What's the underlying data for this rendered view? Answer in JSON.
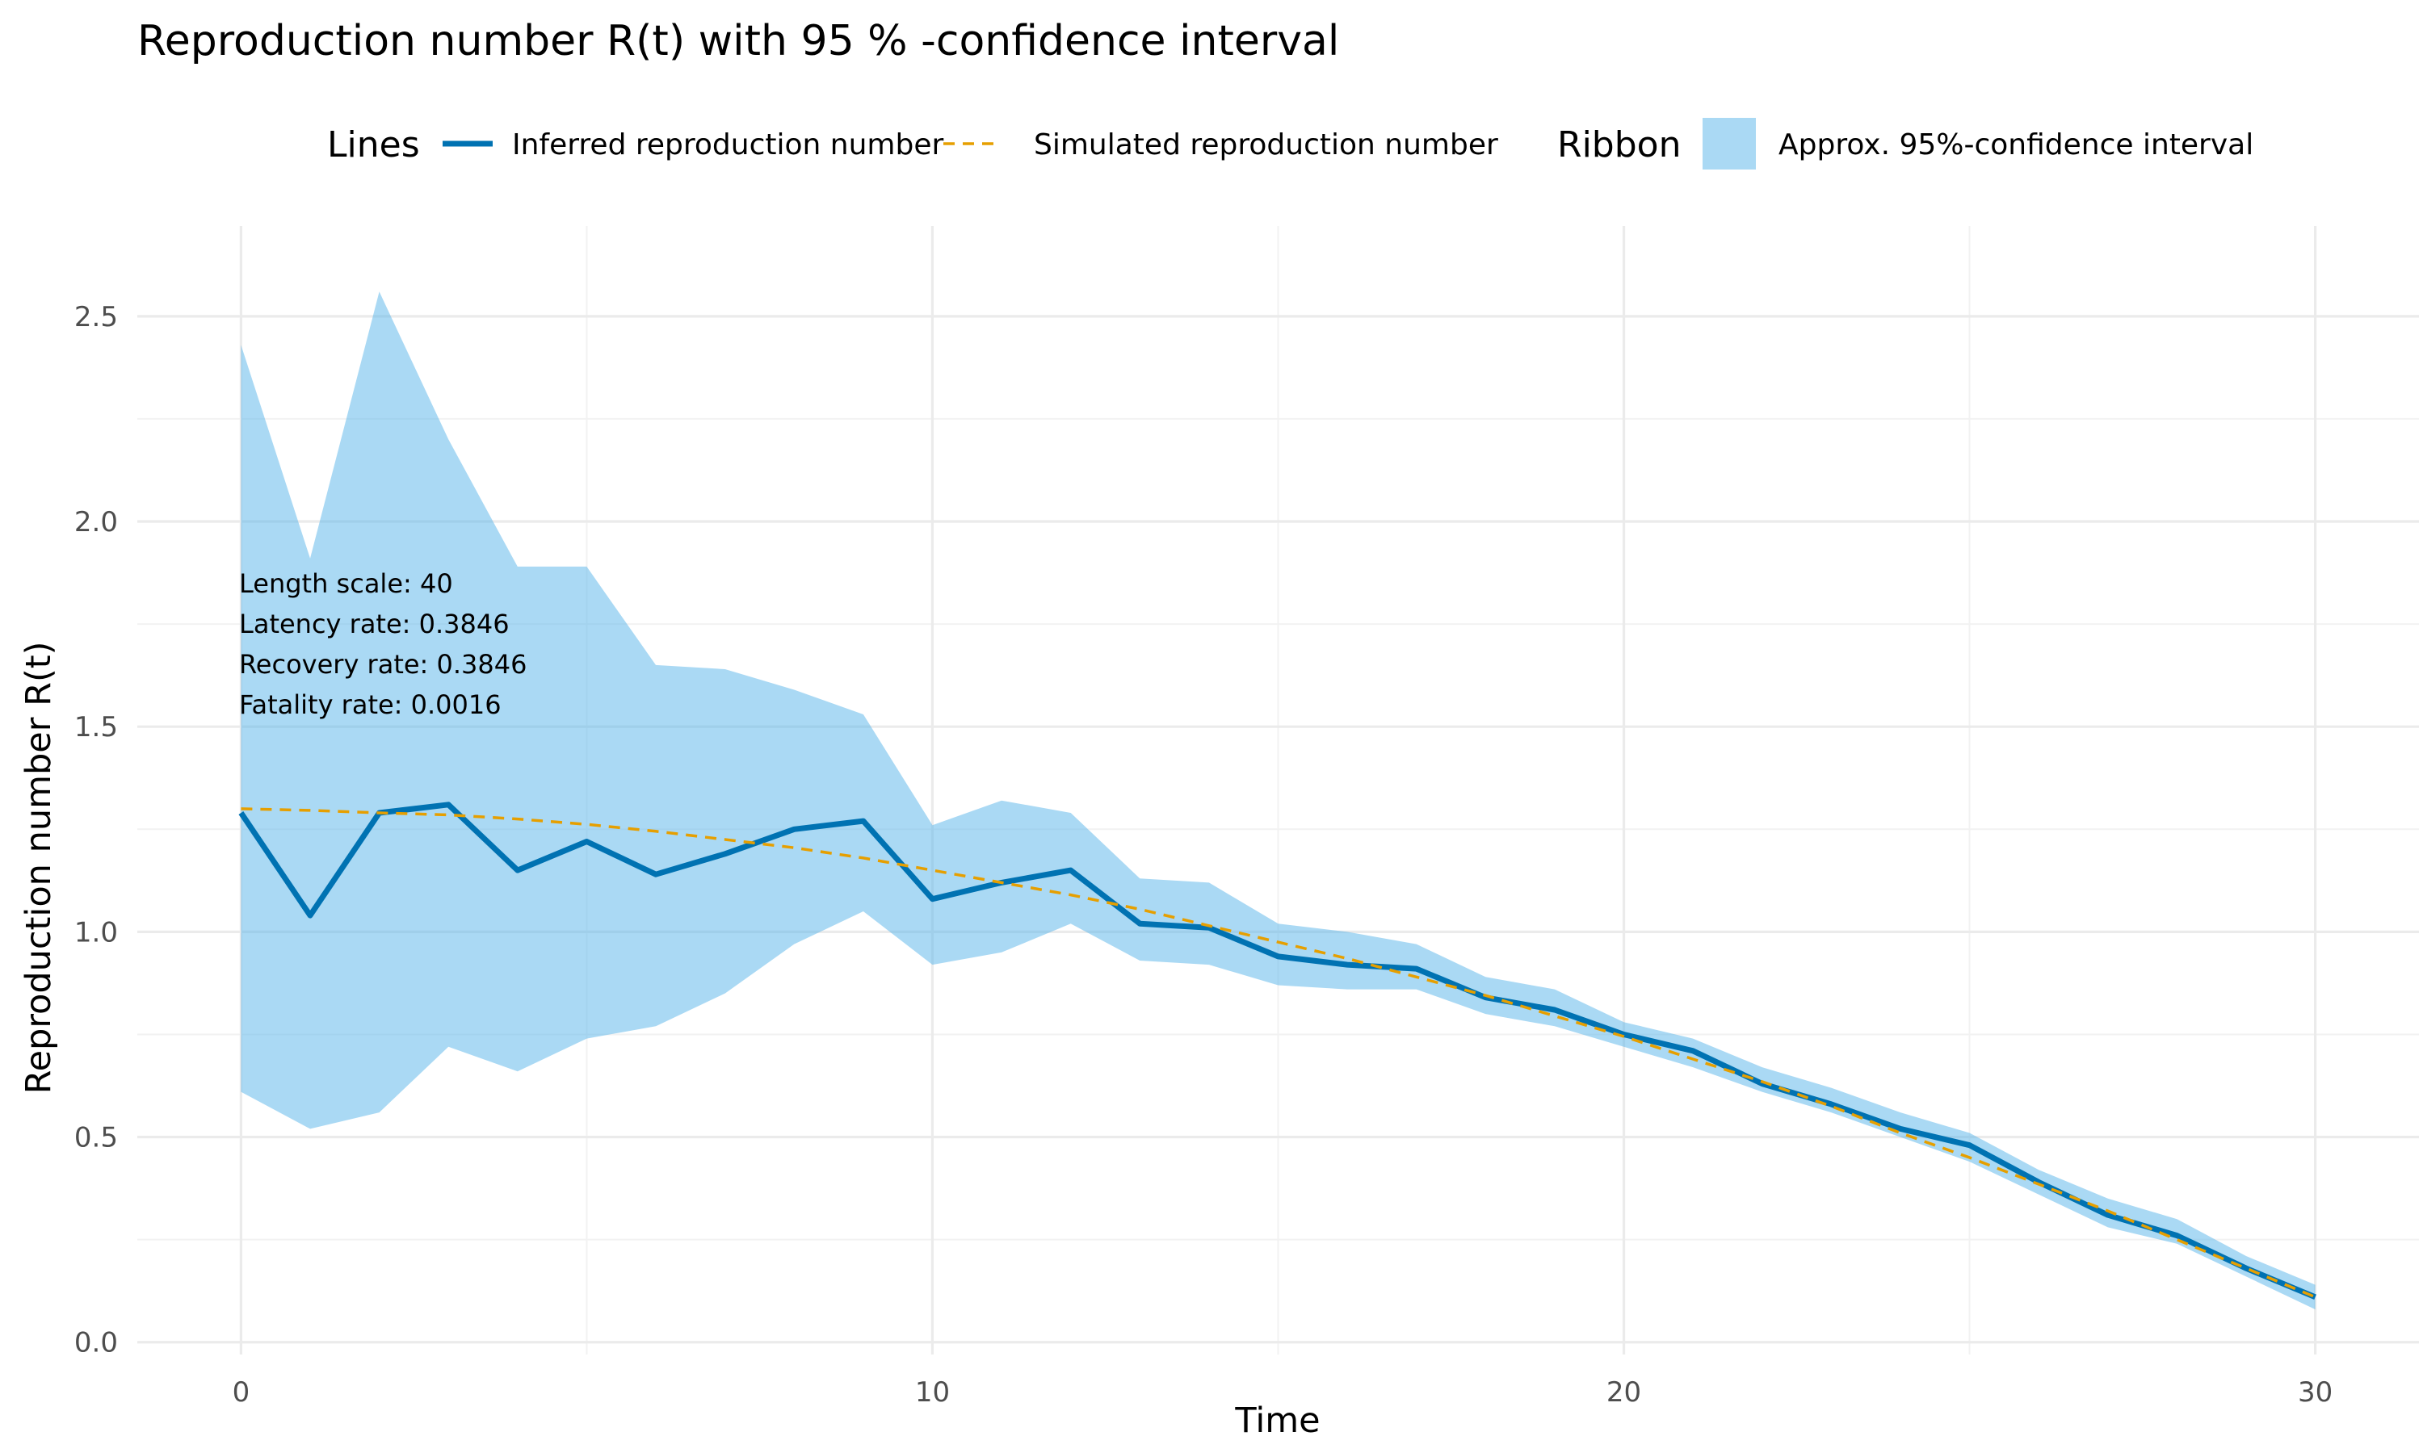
{
  "chart_data": {
    "type": "line",
    "title": "Reproduction number R(t) with 95 % -confidence interval",
    "xlabel": "Time",
    "ylabel": "Reproduction number R(t)",
    "xlim": [
      -1.5,
      31.5
    ],
    "ylim": [
      -0.03,
      2.72
    ],
    "x_ticks": [
      0,
      10,
      20,
      30
    ],
    "y_ticks": [
      0.0,
      0.5,
      1.0,
      1.5,
      2.0,
      2.5
    ],
    "x_tick_labels": [
      "0",
      "10",
      "20",
      "30"
    ],
    "y_tick_labels": [
      "0.0",
      "0.5",
      "1.0",
      "1.5",
      "2.0",
      "2.5"
    ],
    "grid": true,
    "legend_placement": "top",
    "legend": {
      "lines_title": "Lines",
      "ribbon_title": "Ribbon",
      "inferred_label": "Inferred reproduction number",
      "simulated_label": "Simulated reproduction number",
      "ribbon_label": "Approx. 95%-confidence interval"
    },
    "colors": {
      "inferred": "#0072b2",
      "simulated": "#e69f00",
      "ribbon": "#56b4e9"
    },
    "annotations": [
      "Length scale: 40",
      "Latency rate: 0.3846",
      "Recovery rate: 0.3846",
      "Fatality rate: 0.0016"
    ],
    "x": [
      0,
      1,
      2,
      3,
      4,
      5,
      6,
      7,
      8,
      9,
      10,
      11,
      12,
      13,
      14,
      15,
      16,
      17,
      18,
      19,
      20,
      21,
      22,
      23,
      24,
      25,
      26,
      27,
      28,
      29,
      30
    ],
    "series": [
      {
        "name": "Inferred reproduction number",
        "values": [
          1.29,
          1.04,
          1.29,
          1.31,
          1.15,
          1.22,
          1.14,
          1.19,
          1.25,
          1.27,
          1.08,
          1.12,
          1.15,
          1.02,
          1.01,
          0.94,
          0.92,
          0.91,
          0.84,
          0.81,
          0.75,
          0.71,
          0.63,
          0.58,
          0.52,
          0.48,
          0.39,
          0.31,
          0.26,
          0.18,
          0.11
        ]
      },
      {
        "name": "Simulated reproduction number",
        "values": [
          1.3,
          1.296,
          1.29,
          1.285,
          1.275,
          1.262,
          1.245,
          1.225,
          1.205,
          1.18,
          1.15,
          1.12,
          1.09,
          1.055,
          1.015,
          0.975,
          0.935,
          0.89,
          0.845,
          0.795,
          0.745,
          0.69,
          0.635,
          0.575,
          0.51,
          0.45,
          0.385,
          0.32,
          0.25,
          0.18,
          0.11
        ]
      }
    ],
    "ribbon": {
      "name": "Approx. 95%-confidence interval",
      "lower": [
        0.61,
        0.52,
        0.56,
        0.72,
        0.66,
        0.74,
        0.77,
        0.85,
        0.97,
        1.05,
        0.92,
        0.95,
        1.02,
        0.93,
        0.92,
        0.87,
        0.86,
        0.86,
        0.8,
        0.77,
        0.72,
        0.67,
        0.61,
        0.56,
        0.5,
        0.44,
        0.36,
        0.28,
        0.24,
        0.16,
        0.08
      ],
      "upper": [
        2.43,
        1.91,
        2.56,
        2.2,
        1.89,
        1.89,
        1.65,
        1.64,
        1.59,
        1.53,
        1.26,
        1.32,
        1.29,
        1.13,
        1.12,
        1.02,
        1.0,
        0.97,
        0.89,
        0.86,
        0.78,
        0.74,
        0.67,
        0.62,
        0.56,
        0.51,
        0.42,
        0.35,
        0.3,
        0.21,
        0.14
      ]
    }
  }
}
